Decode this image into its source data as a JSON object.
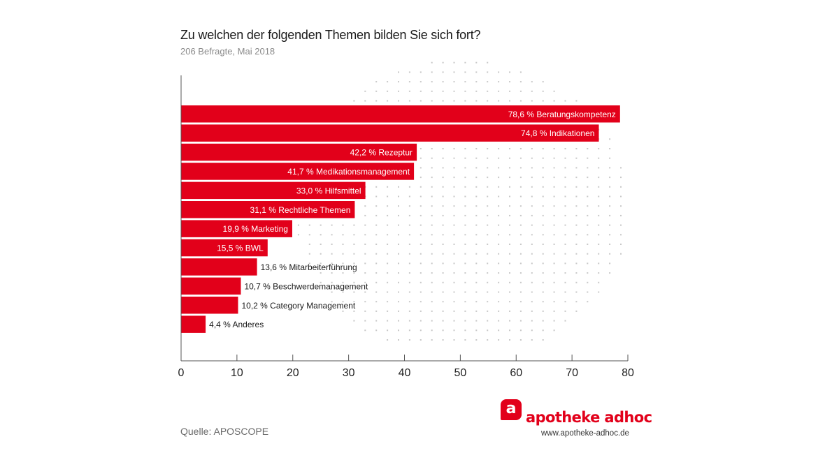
{
  "header": {
    "title": "Zu welchen der folgenden Themen bilden Sie sich fort?",
    "subtitle": "206 Befragte, Mai 2018"
  },
  "footer": {
    "source": "Quelle: APOSCOPE",
    "logo_mark": "a",
    "logo_text": "apotheke adhoc",
    "logo_url": "www.apotheke-adhoc.de"
  },
  "colors": {
    "bar": "#e2001a",
    "axis": "#555555",
    "dots": "#c8c8c8"
  },
  "chart_data": {
    "type": "bar",
    "orientation": "horizontal",
    "title": "Zu welchen der folgenden Themen bilden Sie sich fort?",
    "subtitle": "206 Befragte, Mai 2018",
    "xlabel": "",
    "ylabel": "",
    "xlim": [
      0,
      80
    ],
    "xticks": [
      0,
      10,
      20,
      30,
      40,
      50,
      60,
      70,
      80
    ],
    "grid": false,
    "categories": [
      "Beratungskompetenz",
      "Indikationen",
      "Rezeptur",
      "Medikationsmanagement",
      "Hilfsmittel",
      "Rechtliche Themen",
      "Marketing",
      "BWL",
      "Mitarbeiterführung",
      "Beschwerdemanagement",
      "Category Management",
      "Anderes"
    ],
    "values": [
      78.6,
      74.8,
      42.2,
      41.7,
      33.0,
      31.1,
      19.9,
      15.5,
      13.6,
      10.7,
      10.2,
      4.4
    ],
    "labels": [
      "78,6 % Beratungskompetenz",
      "74,8 % Indikationen",
      "42,2 % Rezeptur",
      "41,7 % Medikationsmanagement",
      "33,0 % Hilfsmittel",
      "31,1 % Rechtliche Themen",
      "19,9 % Marketing",
      "15,5 % BWL",
      "13,6 % Mitarbeiterführung",
      "10,7 % Beschwerdemanagement",
      "10,2 % Category Management",
      "4,4 % Anderes"
    ],
    "label_inside": [
      true,
      true,
      true,
      true,
      true,
      true,
      true,
      true,
      false,
      false,
      false,
      false
    ],
    "unit": "%"
  }
}
